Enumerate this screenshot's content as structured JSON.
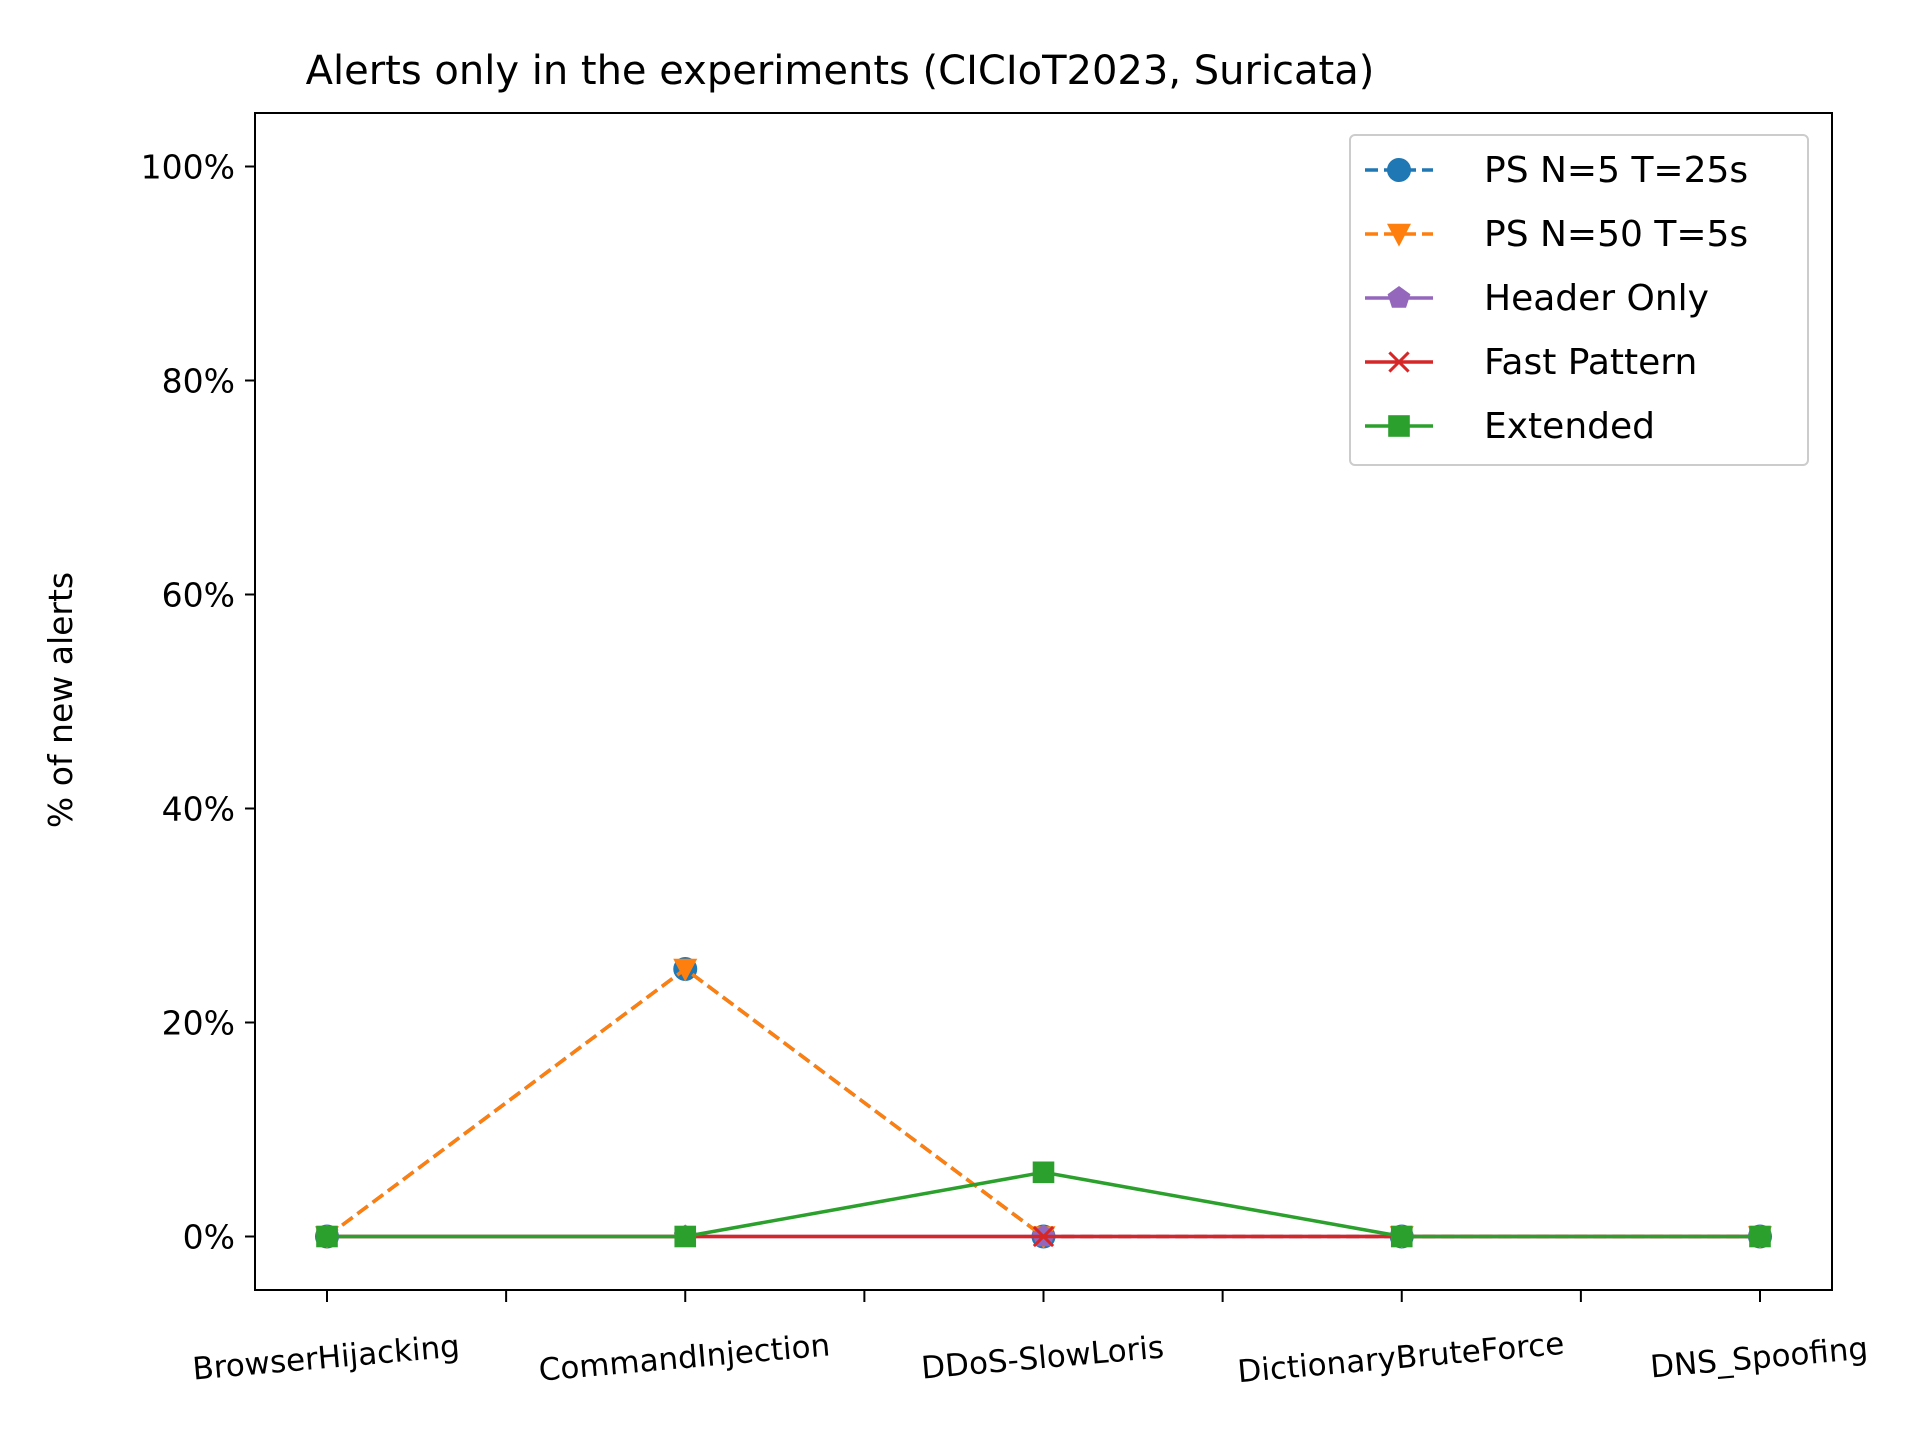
{
  "chart_data": {
    "type": "line",
    "title": "Alerts only in the experiments (CICIoT2023, Suricata)",
    "xlabel": "",
    "ylabel": "% of new alerts",
    "categories": [
      "BrowserHijacking",
      "CommandInjection",
      "DDoS-SlowLoris",
      "DictionaryBruteForce",
      "DNS_Spoofing"
    ],
    "yticks": [
      "0%",
      "20%",
      "40%",
      "60%",
      "80%",
      "100%"
    ],
    "ylim": [
      -5,
      105
    ],
    "grid": false,
    "legend_position": "top-right",
    "series": [
      {
        "name": "PS N=5 T=25s",
        "values": [
          0,
          25,
          0,
          0,
          0
        ],
        "color": "#1f77b4",
        "marker": "circle",
        "linestyle": "dashed"
      },
      {
        "name": "PS N=50 T=5s",
        "values": [
          0,
          25,
          0,
          0,
          0
        ],
        "color": "#ff7f0e",
        "marker": "triangle-down",
        "linestyle": "dashed"
      },
      {
        "name": "Header Only",
        "values": [
          0,
          0,
          0,
          0,
          0
        ],
        "color": "#9467bd",
        "marker": "pentagon",
        "linestyle": "solid"
      },
      {
        "name": "Fast Pattern",
        "values": [
          0,
          0,
          0,
          0,
          0
        ],
        "color": "#d62728",
        "marker": "x",
        "linestyle": "solid"
      },
      {
        "name": "Extended",
        "values": [
          0,
          0,
          6,
          0,
          0
        ],
        "color": "#2ca02c",
        "marker": "square",
        "linestyle": "solid"
      }
    ]
  }
}
